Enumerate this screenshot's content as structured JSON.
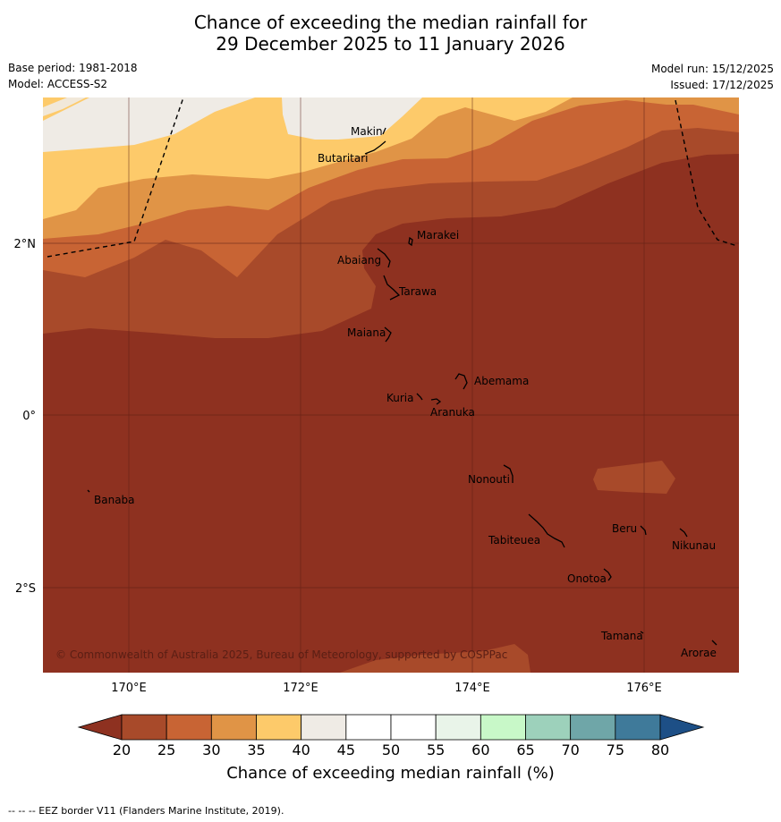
{
  "title": {
    "line1": "Chance of exceeding the median rainfall for",
    "line2": "29 December 2025 to 11 January 2026"
  },
  "meta": {
    "base_period": "Base period: 1981-2018",
    "model": "Model: ACCESS-S2",
    "model_run": "Model run: 15/12/2025",
    "issued": "Issued: 17/12/2025"
  },
  "map": {
    "copyright": "© Commonwealth of Australia 2025, Bureau of Meteorology, supported by COSPPac",
    "lat_ticks": [
      "2°N",
      "0°",
      "2°S"
    ],
    "lon_ticks": [
      "170°E",
      "172°E",
      "174°E",
      "176°E"
    ],
    "places": [
      "Makin",
      "Butaritari",
      "Marakei",
      "Abaiang",
      "Tarawa",
      "Maiana",
      "Abemama",
      "Kuria",
      "Aranuka",
      "Nonouti",
      "Banaba",
      "Beru",
      "Nikunau",
      "Tabiteuea",
      "Onotoa",
      "Tamana",
      "Arorae"
    ]
  },
  "colorbar": {
    "ticks": [
      "20",
      "25",
      "30",
      "35",
      "40",
      "45",
      "50",
      "55",
      "60",
      "65",
      "70",
      "75",
      "80"
    ],
    "colors": [
      "#a84a2a",
      "#c86434",
      "#e09446",
      "#fdca6a",
      "#efebe5",
      "#ffffff",
      "#ffffff",
      "#e9f4e9",
      "#c8f8c8",
      "#9dd1bb",
      "#6fa6a8",
      "#3f7a9a"
    ],
    "under_color": "#8e3120",
    "over_color": "#1d4f86",
    "label": "Chance of exceeding median rainfall (%)"
  },
  "footer": "--  --  -- EEZ border V11 (Flanders Marine Institute, 2019)."
}
